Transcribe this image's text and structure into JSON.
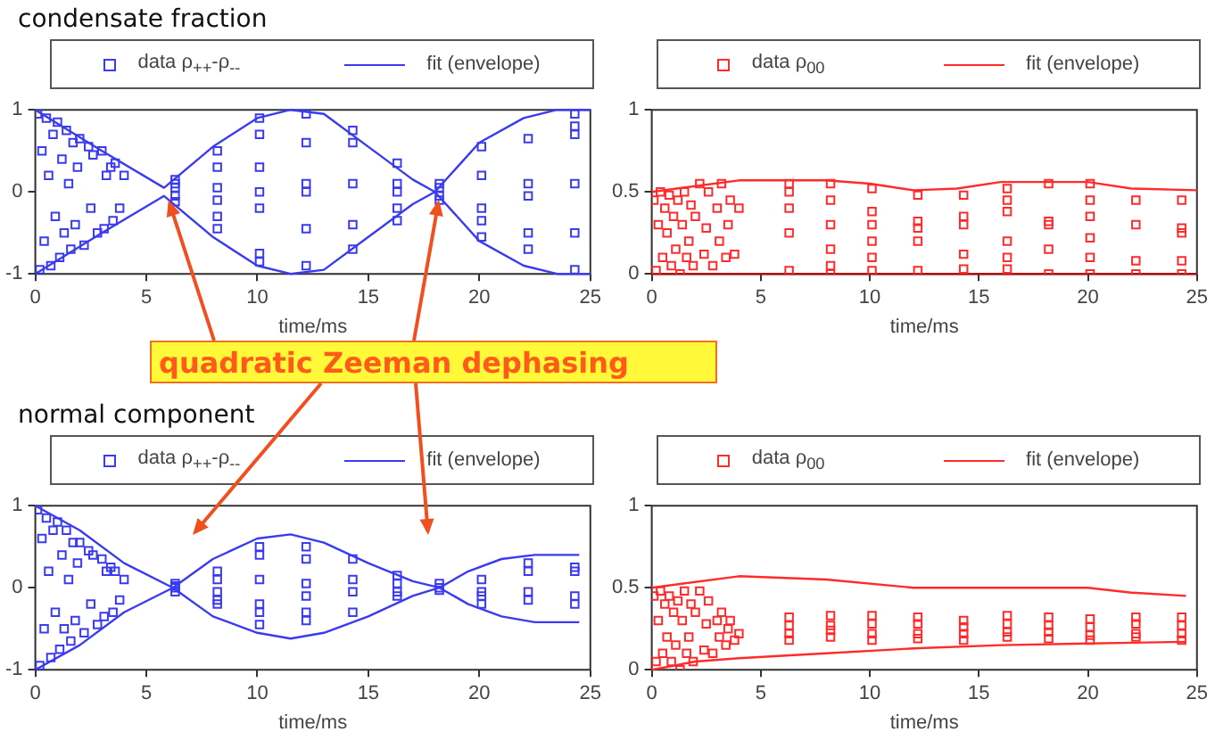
{
  "chart_data": [
    {
      "type": "scatter",
      "title": "condensate fraction",
      "xlabel": "time/ms",
      "legend": "top",
      "xlim": [
        0,
        25
      ],
      "xticks": [
        0,
        5,
        10,
        15,
        20,
        25
      ],
      "ylim": [
        -1,
        1
      ],
      "yticks": [
        -1,
        0,
        1
      ],
      "annotations": [
        {
          "text": "quadratic Zeeman dephasing",
          "x": 6,
          "y": -0.1
        }
      ],
      "series": [
        {
          "name": "data ρ$_{++}$-ρ$_{--}$",
          "color": "#3a3af0",
          "type": "scatter",
          "marker": "square",
          "x": [
            0.1,
            0.2,
            0.3,
            0.4,
            0.5,
            0.6,
            0.7,
            0.8,
            0.9,
            1.0,
            1.1,
            1.2,
            1.3,
            1.4,
            1.5,
            1.6,
            1.7,
            1.8,
            1.9,
            2.0,
            2.2,
            2.4,
            2.5,
            2.6,
            2.8,
            3.0,
            3.1,
            3.2,
            3.4,
            3.5,
            3.6,
            3.8,
            4.0,
            6.3,
            6.3,
            6.3,
            6.3,
            6.3,
            8.2,
            8.2,
            8.2,
            8.2,
            8.2,
            8.2,
            10.1,
            10.1,
            10.1,
            10.1,
            10.1,
            10.1,
            10.1,
            12.2,
            12.2,
            12.2,
            12.2,
            12.2,
            12.2,
            14.3,
            14.3,
            14.3,
            14.3,
            14.3,
            16.3,
            16.3,
            16.3,
            16.3,
            16.3,
            18.2,
            18.2,
            18.2,
            18.2,
            20.1,
            20.1,
            20.1,
            20.1,
            20.1,
            22.2,
            22.2,
            22.2,
            22.2,
            22.2,
            24.3,
            24.3,
            24.3,
            24.3,
            24.3,
            24.3
          ],
          "values": [
            0.95,
            -0.95,
            0.5,
            -0.6,
            0.9,
            0.2,
            -0.9,
            0.7,
            -0.3,
            0.85,
            -0.8,
            0.4,
            -0.5,
            0.75,
            0.1,
            -0.7,
            0.6,
            -0.4,
            0.3,
            0.65,
            -0.65,
            0.55,
            -0.2,
            0.45,
            -0.5,
            0.5,
            -0.45,
            0.2,
            0.3,
            -0.35,
            0.35,
            -0.2,
            0.2,
            0.15,
            0.05,
            -0.05,
            -0.12,
            0.1,
            0.5,
            0.3,
            -0.1,
            -0.3,
            -0.45,
            0.05,
            0.9,
            0.7,
            0.3,
            -0.2,
            -0.75,
            -0.85,
            0.0,
            0.95,
            0.6,
            0.1,
            0.0,
            -0.45,
            -0.9,
            0.75,
            0.6,
            0.1,
            -0.4,
            -0.7,
            0.35,
            0.1,
            0.0,
            -0.2,
            -0.35,
            0.1,
            0.05,
            -0.05,
            -0.1,
            0.55,
            0.2,
            -0.2,
            -0.35,
            -0.55,
            0.65,
            0.1,
            -0.05,
            -0.5,
            -0.7,
            0.95,
            0.8,
            0.1,
            -0.5,
            -0.95,
            0.7
          ]
        },
        {
          "name": "fit (envelope)",
          "color": "#3a3af0",
          "type": "line",
          "marker": "none",
          "x": [
            0,
            3,
            5.8,
            8,
            10,
            11.5,
            13,
            15,
            17,
            18,
            19,
            20,
            22,
            23.5,
            25
          ],
          "values": [
            1,
            0.5,
            0.05,
            0.55,
            0.9,
            1,
            0.95,
            0.55,
            0.15,
            0.0,
            0.3,
            0.6,
            0.9,
            1,
            1
          ]
        },
        {
          "color": "#3a3af0",
          "type": "line",
          "marker": "none",
          "x": [
            0,
            3,
            5.8,
            8,
            10,
            11.5,
            13,
            15,
            17,
            18,
            19,
            20,
            22,
            23.5,
            25
          ],
          "values": [
            -1,
            -0.5,
            -0.05,
            -0.55,
            -0.9,
            -1,
            -0.95,
            -0.55,
            -0.15,
            0.0,
            -0.3,
            -0.6,
            -0.9,
            -1,
            -1
          ]
        }
      ]
    },
    {
      "type": "scatter",
      "xlabel": "time/ms",
      "legend": "top",
      "xlim": [
        0,
        25
      ],
      "xticks": [
        0,
        5,
        10,
        15,
        20,
        25
      ],
      "ylim": [
        0,
        1
      ],
      "yticks": [
        0,
        0.5,
        1
      ],
      "series": [
        {
          "name": "data ρ$_{00}$",
          "color": "#ff2a2a",
          "type": "scatter",
          "marker": "square",
          "x": [
            0.1,
            0.2,
            0.3,
            0.4,
            0.5,
            0.6,
            0.7,
            0.8,
            0.9,
            1.0,
            1.1,
            1.2,
            1.3,
            1.4,
            1.5,
            1.6,
            1.7,
            1.8,
            1.9,
            2.0,
            2.2,
            2.4,
            2.5,
            2.6,
            2.8,
            3.0,
            3.1,
            3.2,
            3.4,
            3.5,
            3.6,
            3.8,
            4.0,
            6.3,
            6.3,
            6.3,
            6.3,
            6.3,
            8.2,
            8.2,
            8.2,
            8.2,
            8.2,
            8.2,
            10.1,
            10.1,
            10.1,
            10.1,
            10.1,
            10.1,
            12.2,
            12.2,
            12.2,
            12.2,
            12.2,
            14.3,
            14.3,
            14.3,
            14.3,
            14.3,
            16.3,
            16.3,
            16.3,
            16.3,
            16.3,
            16.3,
            18.2,
            18.2,
            18.2,
            18.2,
            18.2,
            20.1,
            20.1,
            20.1,
            20.1,
            20.1,
            20.1,
            22.2,
            22.2,
            22.2,
            22.2,
            24.3,
            24.3,
            24.3,
            24.3,
            24.3
          ],
          "values": [
            0.45,
            0.02,
            0.3,
            0.5,
            0.1,
            0.4,
            0.25,
            0.48,
            0.05,
            0.35,
            0.15,
            0.45,
            0.0,
            0.3,
            0.5,
            0.1,
            0.2,
            0.42,
            0.05,
            0.35,
            0.55,
            0.12,
            0.28,
            0.5,
            0.05,
            0.4,
            0.2,
            0.55,
            0.1,
            0.3,
            0.45,
            0.12,
            0.4,
            0.55,
            0.5,
            0.4,
            0.25,
            0.02,
            0.55,
            0.45,
            0.3,
            0.15,
            0.05,
            0.0,
            0.52,
            0.38,
            0.3,
            0.2,
            0.1,
            0.02,
            0.48,
            0.32,
            0.28,
            0.2,
            0.02,
            0.48,
            0.35,
            0.3,
            0.12,
            0.03,
            0.52,
            0.45,
            0.38,
            0.2,
            0.1,
            0.03,
            0.55,
            0.32,
            0.3,
            0.15,
            0.0,
            0.55,
            0.45,
            0.35,
            0.22,
            0.1,
            0.0,
            0.45,
            0.3,
            0.08,
            0.0,
            0.45,
            0.28,
            0.25,
            0.08,
            0.0
          ]
        },
        {
          "name": "fit (envelope)",
          "color": "#ff2a2a",
          "type": "line",
          "marker": "none",
          "x": [
            0,
            4,
            6,
            8,
            10,
            12,
            14,
            16,
            18,
            20,
            22,
            25
          ],
          "values": [
            0.5,
            0.57,
            0.57,
            0.57,
            0.55,
            0.51,
            0.52,
            0.56,
            0.56,
            0.56,
            0.52,
            0.51
          ]
        },
        {
          "color": "#b01010",
          "type": "line",
          "marker": "none",
          "x": [
            0,
            25
          ],
          "values": [
            0,
            0
          ]
        }
      ]
    },
    {
      "type": "scatter",
      "title": "normal component",
      "xlabel": "time/ms",
      "legend": "top",
      "xlim": [
        0,
        25
      ],
      "xticks": [
        0,
        5,
        10,
        15,
        20,
        25
      ],
      "ylim": [
        -1,
        1
      ],
      "yticks": [
        -1,
        0,
        1
      ],
      "series": [
        {
          "name": "data ρ$_{++}$-ρ$_{--}$",
          "color": "#3a3af0",
          "type": "scatter",
          "marker": "square",
          "x": [
            0.1,
            0.2,
            0.3,
            0.4,
            0.5,
            0.6,
            0.7,
            0.8,
            0.9,
            1.0,
            1.1,
            1.2,
            1.3,
            1.4,
            1.5,
            1.6,
            1.7,
            1.8,
            1.9,
            2.0,
            2.2,
            2.4,
            2.5,
            2.6,
            2.8,
            3.0,
            3.1,
            3.2,
            3.4,
            3.5,
            3.6,
            3.8,
            4.0,
            6.3,
            6.3,
            6.3,
            6.3,
            8.2,
            8.2,
            8.2,
            8.2,
            8.2,
            10.1,
            10.1,
            10.1,
            10.1,
            10.1,
            10.1,
            12.2,
            12.2,
            12.2,
            12.2,
            12.2,
            12.2,
            14.3,
            14.3,
            14.3,
            14.3,
            16.3,
            16.3,
            16.3,
            16.3,
            18.2,
            18.2,
            18.2,
            20.1,
            20.1,
            20.1,
            20.1,
            22.2,
            22.2,
            22.2,
            22.2,
            24.3,
            24.3,
            24.3,
            24.3
          ],
          "values": [
            0.95,
            -0.95,
            0.6,
            -0.5,
            0.85,
            0.2,
            -0.85,
            0.7,
            -0.3,
            0.8,
            -0.75,
            0.4,
            -0.5,
            0.7,
            0.1,
            -0.65,
            0.55,
            -0.4,
            0.3,
            0.55,
            -0.55,
            0.45,
            -0.2,
            0.4,
            -0.45,
            0.35,
            -0.35,
            0.2,
            0.25,
            -0.3,
            0.2,
            -0.15,
            0.1,
            0.05,
            0.0,
            -0.05,
            0.02,
            0.2,
            0.1,
            -0.05,
            -0.15,
            -0.2,
            0.5,
            0.4,
            0.1,
            -0.2,
            -0.3,
            -0.45,
            0.5,
            0.35,
            0.05,
            -0.1,
            -0.3,
            -0.4,
            0.35,
            0.1,
            -0.05,
            -0.3,
            0.15,
            0.05,
            -0.05,
            -0.1,
            0.05,
            0.0,
            -0.03,
            0.1,
            -0.05,
            -0.1,
            -0.2,
            0.3,
            0.2,
            -0.05,
            -0.15,
            0.25,
            0.2,
            -0.1,
            -0.2
          ]
        },
        {
          "name": "fit (envelope)",
          "color": "#3a3af0",
          "type": "line",
          "marker": "none",
          "x": [
            0,
            2,
            4,
            6.2,
            8,
            10,
            11.5,
            13,
            15,
            17,
            18.2,
            19.5,
            21,
            22.5,
            24.5
          ],
          "values": [
            1,
            0.7,
            0.3,
            0,
            0.35,
            0.6,
            0.65,
            0.55,
            0.3,
            0.08,
            0,
            0.2,
            0.35,
            0.4,
            0.4
          ]
        },
        {
          "color": "#3a3af0",
          "type": "line",
          "marker": "none",
          "x": [
            0,
            2,
            4,
            6.2,
            8,
            10,
            11.5,
            13,
            15,
            17,
            18.2,
            19.5,
            21,
            22.5,
            24.5
          ],
          "values": [
            -1,
            -0.7,
            -0.3,
            0,
            -0.35,
            -0.55,
            -0.62,
            -0.55,
            -0.35,
            -0.1,
            0,
            -0.2,
            -0.35,
            -0.42,
            -0.42
          ]
        }
      ]
    },
    {
      "type": "scatter",
      "xlabel": "time/ms",
      "legend": "top",
      "xlim": [
        0,
        25
      ],
      "xticks": [
        0,
        5,
        10,
        15,
        20,
        25
      ],
      "ylim": [
        0,
        1
      ],
      "yticks": [
        0,
        0.5,
        1
      ],
      "series": [
        {
          "name": "data ρ$_{00}$",
          "color": "#ff2a2a",
          "type": "scatter",
          "marker": "square",
          "x": [
            0.1,
            0.2,
            0.3,
            0.4,
            0.5,
            0.6,
            0.7,
            0.8,
            0.9,
            1.0,
            1.1,
            1.2,
            1.3,
            1.4,
            1.5,
            1.6,
            1.7,
            1.8,
            1.9,
            2.0,
            2.2,
            2.4,
            2.5,
            2.6,
            2.8,
            3.0,
            3.1,
            3.2,
            3.4,
            3.5,
            3.6,
            3.8,
            4.0,
            6.3,
            6.3,
            6.3,
            6.3,
            8.2,
            8.2,
            8.2,
            8.2,
            10.1,
            10.1,
            10.1,
            10.1,
            12.2,
            12.2,
            12.2,
            12.2,
            14.3,
            14.3,
            14.3,
            14.3,
            16.3,
            16.3,
            16.3,
            16.3,
            18.2,
            18.2,
            18.2,
            18.2,
            20.1,
            20.1,
            20.1,
            20.1,
            22.2,
            22.2,
            22.2,
            22.2,
            24.3,
            24.3,
            24.3,
            24.3
          ],
          "values": [
            0.45,
            0.05,
            0.3,
            0.48,
            0.1,
            0.4,
            0.2,
            0.45,
            0.05,
            0.35,
            0.15,
            0.42,
            0.0,
            0.3,
            0.48,
            0.1,
            0.2,
            0.4,
            0.05,
            0.35,
            0.48,
            0.12,
            0.28,
            0.42,
            0.1,
            0.3,
            0.2,
            0.35,
            0.15,
            0.25,
            0.3,
            0.18,
            0.22,
            0.32,
            0.27,
            0.22,
            0.18,
            0.33,
            0.27,
            0.24,
            0.2,
            0.33,
            0.28,
            0.22,
            0.18,
            0.32,
            0.28,
            0.22,
            0.19,
            0.3,
            0.26,
            0.22,
            0.18,
            0.33,
            0.28,
            0.23,
            0.2,
            0.32,
            0.27,
            0.23,
            0.19,
            0.31,
            0.26,
            0.21,
            0.18,
            0.32,
            0.28,
            0.22,
            0.2,
            0.32,
            0.27,
            0.22,
            0.18
          ]
        },
        {
          "name": "fit (envelope)",
          "color": "#ff2a2a",
          "type": "line",
          "marker": "none",
          "x": [
            0,
            4,
            8,
            12,
            16,
            20,
            22,
            24.5
          ],
          "values": [
            0.5,
            0.57,
            0.55,
            0.5,
            0.5,
            0.5,
            0.47,
            0.45
          ]
        },
        {
          "color": "#ff2a2a",
          "type": "line",
          "marker": "none",
          "x": [
            0,
            2,
            4,
            8,
            12,
            16,
            20,
            24.5
          ],
          "values": [
            0,
            0.05,
            0.07,
            0.1,
            0.13,
            0.15,
            0.16,
            0.17
          ]
        }
      ]
    }
  ]
}
